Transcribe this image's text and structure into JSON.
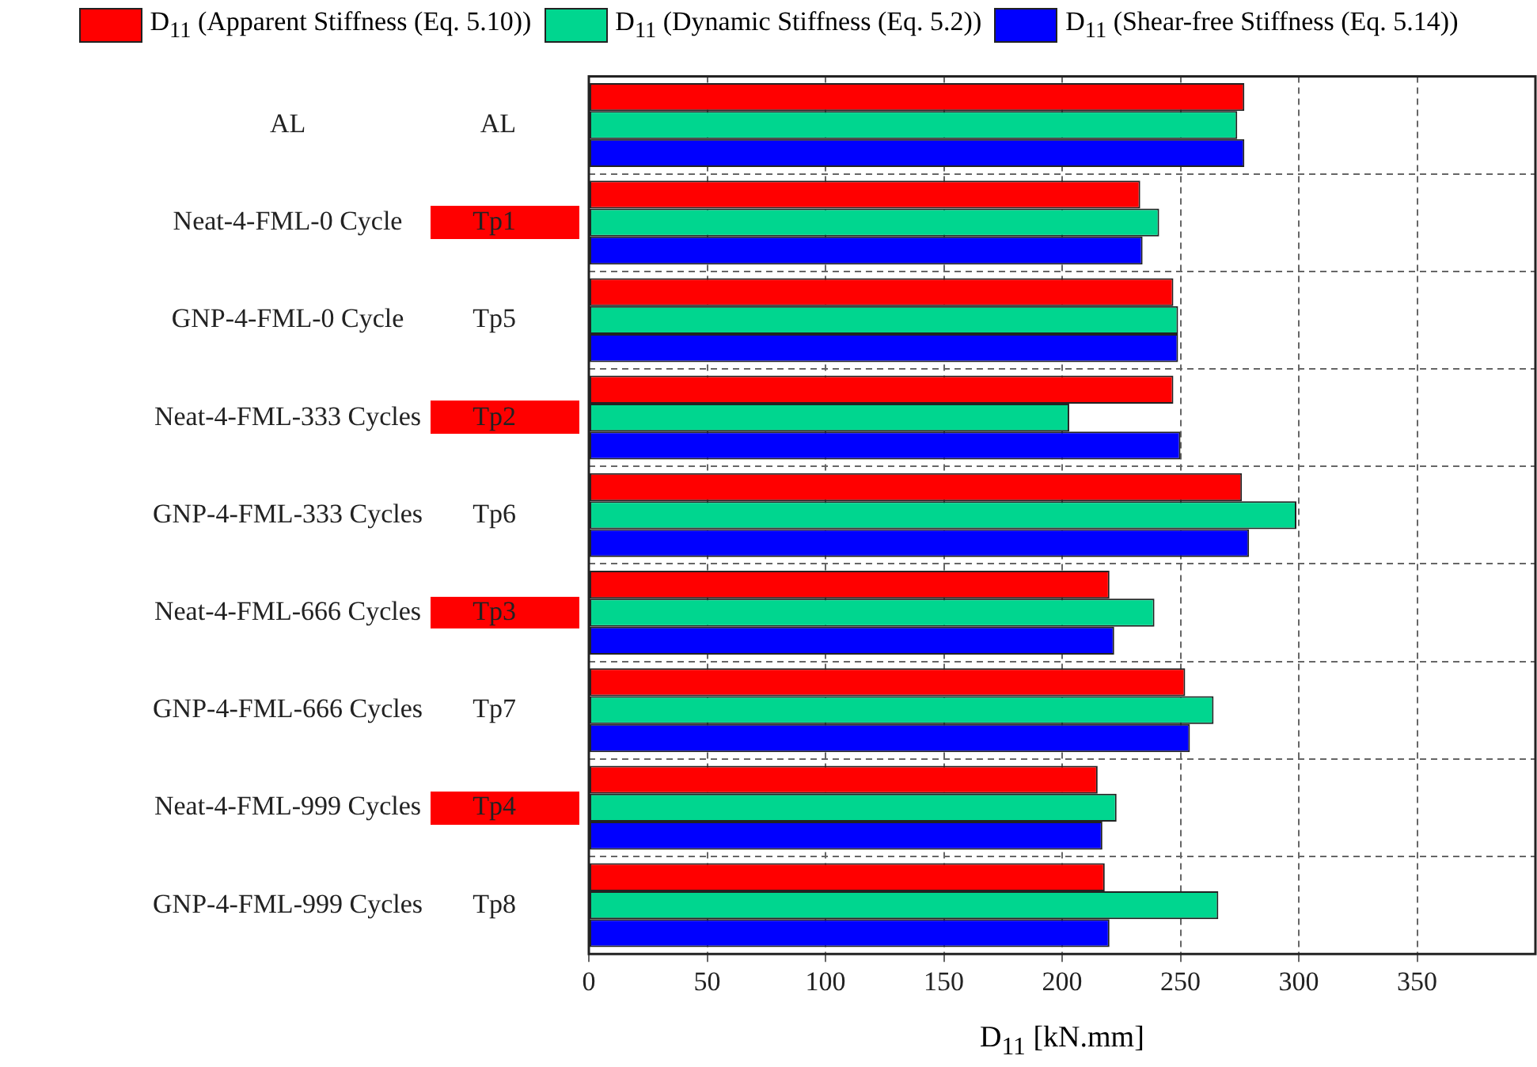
{
  "chart_data": {
    "type": "bar",
    "orientation": "horizontal",
    "xlabel": "D$_{11}$ [kN.mm]",
    "categories": [
      "AL",
      "Neat-4-FML-0 Cycle",
      "GNP-4-FML-0 Cycle",
      "Neat-4-FML-333 Cycles",
      "GNP-4-FML-333 Cycles",
      "Neat-4-FML-666 Cycles",
      "GNP-4-FML-666 Cycles",
      "Neat-4-FML-999 Cycles",
      "GNP-4-FML-999 Cycles"
    ],
    "y2_categories": [
      "AL",
      "Tp1",
      "Tp5",
      "Tp2",
      "Tp6",
      "Tp3",
      "Tp7",
      "Tp4",
      "Tp8"
    ],
    "series": [
      {
        "name": "D$_{11}$ (Apparent Stiffness (Eq. 5.10))",
        "color": "#ff0000",
        "values": [
          277,
          233,
          247,
          247,
          276,
          220,
          252,
          215,
          218
        ]
      },
      {
        "name": "D$_{11}$ (Dynamic Stiffness (Eq. 5.2))",
        "color": "#00d68f",
        "values": [
          274,
          241,
          249,
          203,
          299,
          239,
          264,
          223,
          266
        ]
      },
      {
        "name": "D$_{11}$ (Shear-free Stiffness (Eq. 5.14))",
        "color": "#0000ff",
        "values": [
          277,
          234,
          249,
          250,
          279,
          222,
          254,
          217,
          220
        ]
      }
    ],
    "xlim": [
      0,
      400
    ],
    "xticks": [
      0,
      50,
      100,
      150,
      200,
      250,
      300,
      350
    ],
    "grid": true,
    "legend": "top"
  }
}
